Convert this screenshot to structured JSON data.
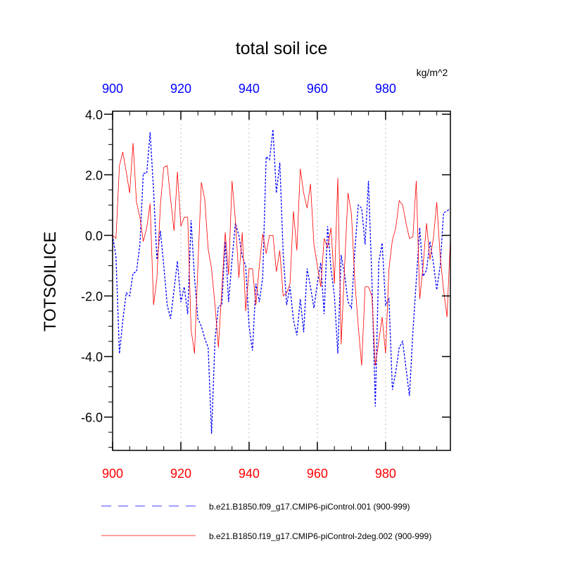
{
  "chart_data": {
    "type": "line",
    "title": "total soil ice",
    "units": "kg/m^2",
    "ylabel": "TOTSOILICE",
    "xlabel": "",
    "xlim": [
      900,
      999
    ],
    "ylim": [
      -7.1,
      4.1
    ],
    "x_ticks": [
      "900",
      "920",
      "940",
      "960",
      "980"
    ],
    "y_ticks": [
      "-6.0",
      "-4.0",
      "-2.0",
      "0.0",
      "2.0",
      "4.0"
    ],
    "grid": "vertical dotted at 920, 940, 960, 980",
    "legend_position": "bottom",
    "colors": {
      "top_axis": "#0000ff",
      "bottom_axis": "#ff0000"
    },
    "x_start": 900,
    "series": [
      {
        "name": "b.e21.B1850.f09_g17.CMIP6-piControl.001 (900-999)",
        "color": "#0000ff",
        "style": "dashed",
        "values": [
          0.0,
          -0.7,
          -3.9,
          -2.8,
          -1.9,
          -2.0,
          -1.25,
          -1.2,
          -0.3,
          2.05,
          2.05,
          3.4,
          1.5,
          -0.8,
          0.15,
          -1.0,
          -2.3,
          -2.75,
          -1.8,
          -0.85,
          -2.2,
          -1.7,
          -2.6,
          0.5,
          -1.4,
          -2.75,
          -3.0,
          -3.4,
          -3.7,
          -6.55,
          -3.45,
          -2.35,
          -2.3,
          -0.2,
          -2.2,
          -0.8,
          0.4,
          0.0,
          -0.7,
          -1.0,
          -3.0,
          -3.8,
          -1.6,
          -2.2,
          -1.4,
          2.6,
          2.5,
          3.5,
          1.4,
          2.4,
          -0.6,
          -2.3,
          -1.7,
          -2.8,
          -3.3,
          -2.1,
          -3.2,
          -1.1,
          -1.7,
          -2.4,
          -1.6,
          -0.9,
          -2.6,
          0.3,
          -1.1,
          -2.0,
          -3.9,
          -0.65,
          -1.3,
          -2.2,
          -2.4,
          -0.5,
          1.0,
          0.9,
          -0.3,
          1.8,
          -1.5,
          -5.65,
          -0.9,
          -0.25,
          -2.3,
          -2.1,
          -5.1,
          -4.5,
          -3.7,
          -3.5,
          -4.4,
          -5.3,
          -3.2,
          -1.5,
          0.25,
          -1.35,
          -1.15,
          -0.2,
          -0.9,
          -1.8,
          -1.0,
          0.75,
          0.8,
          0.9
        ]
      },
      {
        "name": "b.e21.B1850.f19_g17.CMIP6-piControl-2deg.002 (900-999)",
        "color": "#ff0000",
        "style": "solid",
        "values": [
          0.0,
          -0.1,
          2.3,
          2.75,
          2.1,
          1.4,
          3.05,
          1.1,
          0.6,
          -0.2,
          0.25,
          1.05,
          -2.3,
          -1.4,
          1.0,
          2.25,
          2.3,
          1.2,
          0.15,
          2.1,
          0.3,
          0.6,
          0.6,
          -3.1,
          -3.9,
          -1.0,
          1.75,
          1.2,
          -0.45,
          -1.1,
          -2.3,
          -3.7,
          -1.8,
          0.1,
          -1.3,
          1.8,
          0.5,
          -1.4,
          0.1,
          -2.5,
          -1.1,
          -1.1,
          -2.3,
          -1.0,
          0.05,
          -0.6,
          0.0,
          0.0,
          -1.2,
          -0.5,
          -2.0,
          -1.9,
          -1.6,
          0.8,
          -0.5,
          2.2,
          1.4,
          0.9,
          1.7,
          -0.3,
          -1.0,
          -1.7,
          -0.1,
          -0.4,
          0.25,
          -1.6,
          1.9,
          -3.6,
          -1.0,
          1.4,
          0.7,
          -1.5,
          -3.0,
          -4.3,
          -1.7,
          -1.7,
          -2.0,
          -4.3,
          -3.5,
          -2.7,
          -3.9,
          -1.1,
          -0.15,
          0.25,
          1.15,
          1.0,
          0.4,
          -0.1,
          -0.05,
          1.8,
          -2.1,
          -1.0,
          0.4,
          -0.8,
          -0.1,
          1.1,
          -0.7,
          -1.8,
          -2.7,
          -0.1
        ]
      }
    ]
  }
}
